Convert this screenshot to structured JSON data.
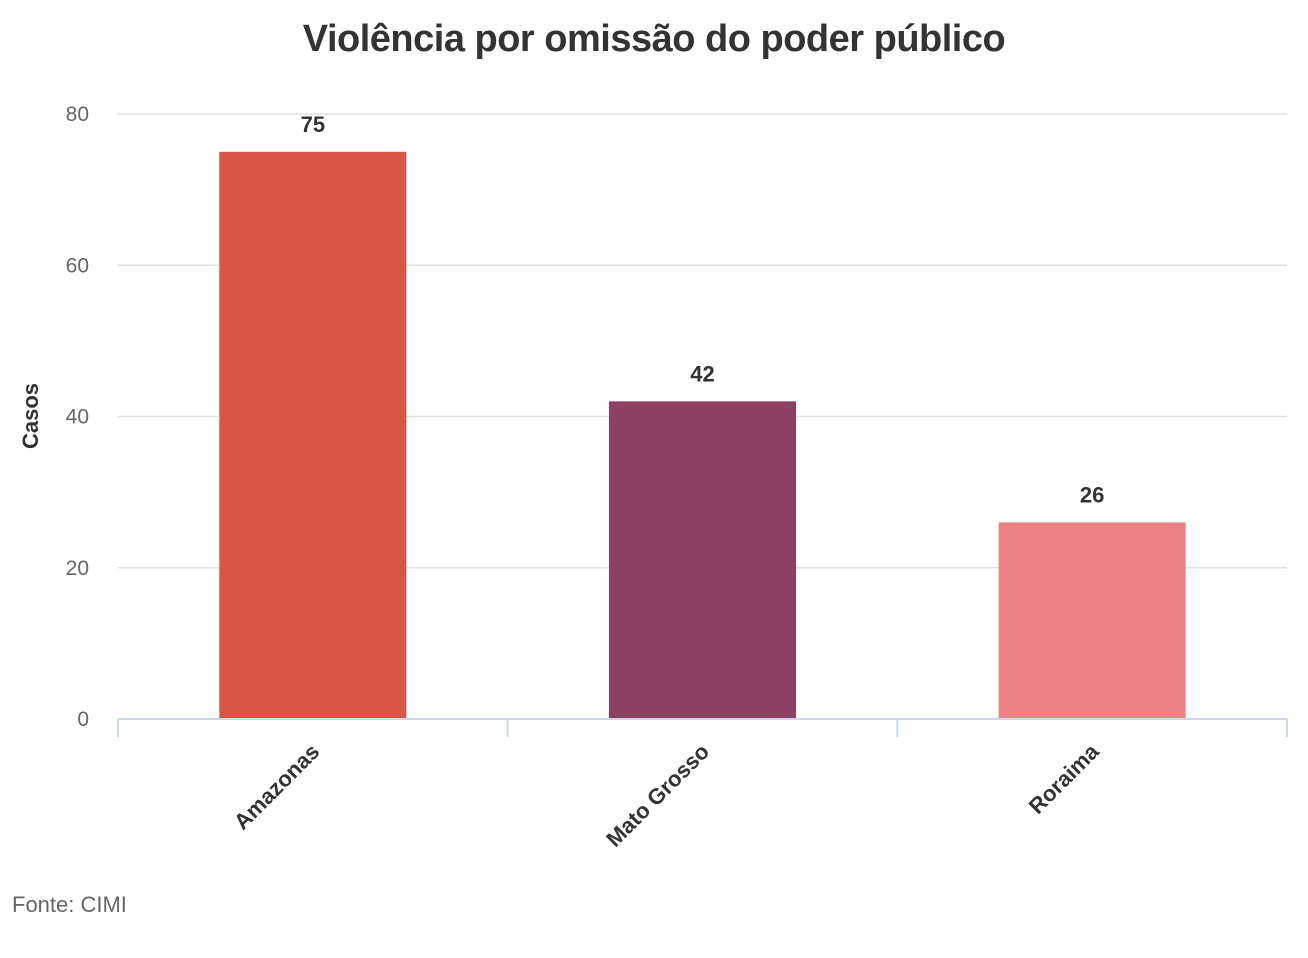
{
  "chart_data": {
    "type": "bar",
    "title": "Violência por omissão do poder público",
    "ylabel": "Casos",
    "xlabel": "",
    "categories": [
      "Amazonas",
      "Mato Grosso",
      "Roraima"
    ],
    "values": [
      75,
      42,
      26
    ],
    "colors": [
      "#d95545",
      "#8e4063",
      "#eb8284"
    ],
    "ylim": [
      0,
      80
    ],
    "yticks": [
      "0",
      "20",
      "40",
      "60",
      "80"
    ],
    "grid": true,
    "legend": "none",
    "data_labels": [
      "75",
      "42",
      "26"
    ]
  },
  "source": "Fonte: CIMI"
}
